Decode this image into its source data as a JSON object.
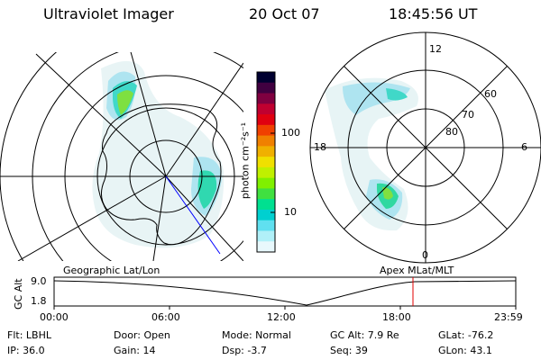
{
  "header": {
    "instrument": "Ultraviolet Imager",
    "date": "20 Oct 07",
    "time": "18:45:56 UT"
  },
  "colorbar": {
    "unit_label": "photon cm⁻²s⁻¹",
    "ticks": [
      "100",
      "10"
    ],
    "colors": [
      "#000030",
      "#400040",
      "#800040",
      "#c00030",
      "#e00010",
      "#f04000",
      "#f08000",
      "#f0b000",
      "#f0e000",
      "#c0f000",
      "#80f000",
      "#40e040",
      "#00e090",
      "#00d0d0",
      "#60e0f0",
      "#b0f0f8",
      "#e8f8fc"
    ]
  },
  "left_panel": {
    "label": "Geographic Lat/Lon"
  },
  "right_panel": {
    "label": "Apex MLat/MLT",
    "mlt_labels": {
      "top": "12",
      "left": "18",
      "right": "6",
      "bottom": "0"
    },
    "lat_labels": [
      "60",
      "70",
      "80"
    ]
  },
  "altitude_plot": {
    "ylabel": "GC Alt",
    "yticks": [
      "9.0",
      "1.8"
    ],
    "xticks": [
      "00:00",
      "06:00",
      "12:00",
      "18:00",
      "23:59"
    ],
    "marker_color": "#e00000"
  },
  "footer": {
    "filter": "Flt: LBHL",
    "ip": "IP: 36.0",
    "door": "Door: Open",
    "gain": "Gain: 14",
    "mode": "Mode: Normal",
    "dsp": "Dsp:   -3.7",
    "gc_alt": "GC Alt: 7.9 Re",
    "seq": "Seq: 39",
    "glat": "GLat: -76.2",
    "glon": "GLon:  43.1"
  }
}
